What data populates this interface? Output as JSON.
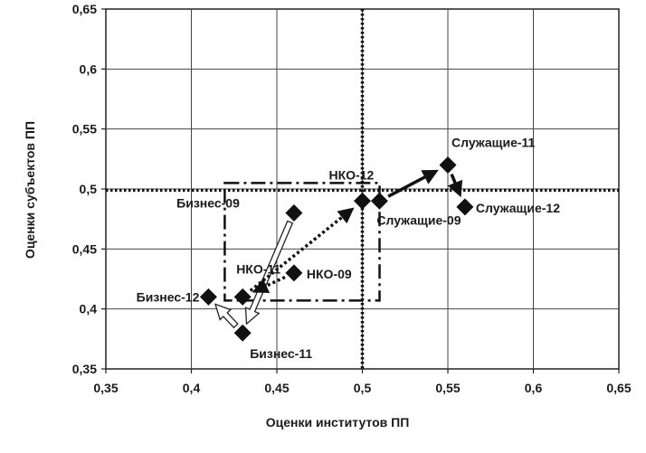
{
  "chart_data": {
    "type": "scatter",
    "title": "",
    "xlabel": "Оценки институтов ПП",
    "ylabel": "Оценки субъектов ПП",
    "xlim": [
      0.35,
      0.65
    ],
    "ylim": [
      0.35,
      0.65
    ],
    "xticks": [
      0.35,
      0.4,
      0.45,
      0.5,
      0.55,
      0.6,
      0.65
    ],
    "yticks": [
      0.35,
      0.4,
      0.45,
      0.5,
      0.55,
      0.6,
      0.65
    ],
    "xtick_labels": [
      "0,35",
      "0,4",
      "0,45",
      "0,5",
      "0,55",
      "0,6",
      "0,65"
    ],
    "ytick_labels": [
      "0,35",
      "0,4",
      "0,45",
      "0,5",
      "0,55",
      "0,6",
      "0,65"
    ],
    "grid": true,
    "reference_lines": {
      "x": 0.5,
      "y": 0.499
    },
    "points": [
      {
        "label": "Бизнес-09",
        "x": 0.46,
        "y": 0.48
      },
      {
        "label": "Бизнес-11",
        "x": 0.43,
        "y": 0.38
      },
      {
        "label": "Бизнес-12",
        "x": 0.41,
        "y": 0.41
      },
      {
        "label": "НКО-09",
        "x": 0.46,
        "y": 0.43
      },
      {
        "label": "НКО-11",
        "x": 0.43,
        "y": 0.41
      },
      {
        "label": "НКО-12",
        "x": 0.5,
        "y": 0.49
      },
      {
        "label": "Служащие-09",
        "x": 0.51,
        "y": 0.49
      },
      {
        "label": "Служащие-11",
        "x": 0.55,
        "y": 0.52
      },
      {
        "label": "Служащие-12",
        "x": 0.56,
        "y": 0.485
      }
    ],
    "arrows": [
      {
        "group": "Бизнес",
        "style": "hollow",
        "from": [
          0.46,
          0.48
        ],
        "to": [
          0.43,
          0.38
        ]
      },
      {
        "group": "Бизнес",
        "style": "hollow",
        "from": [
          0.43,
          0.38
        ],
        "to": [
          0.41,
          0.41
        ]
      },
      {
        "group": "НКО",
        "style": "dotted",
        "from": [
          0.46,
          0.43
        ],
        "to": [
          0.43,
          0.41
        ]
      },
      {
        "group": "НКО",
        "style": "dotted",
        "from": [
          0.43,
          0.41
        ],
        "to": [
          0.5,
          0.49
        ]
      },
      {
        "group": "Служащие",
        "style": "solid",
        "from": [
          0.51,
          0.49
        ],
        "to": [
          0.55,
          0.52
        ]
      },
      {
        "group": "Служащие",
        "style": "solid",
        "from": [
          0.55,
          0.52
        ],
        "to": [
          0.56,
          0.485
        ]
      }
    ],
    "highlight_box": {
      "x0": 0.41,
      "x1": 0.509,
      "y0": 0.407,
      "y1": 0.505,
      "style": "dash-dot"
    }
  }
}
